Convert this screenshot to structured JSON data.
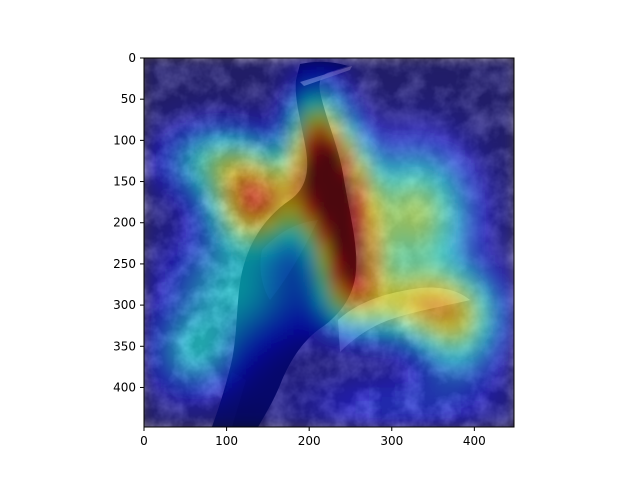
{
  "chart_data": {
    "type": "heatmap",
    "title": "",
    "xlabel": "",
    "ylabel": "",
    "xlim": [
      0,
      448
    ],
    "ylim": [
      448,
      0
    ],
    "x_ticks": [
      0,
      100,
      200,
      300,
      400
    ],
    "y_ticks": [
      0,
      50,
      100,
      150,
      200,
      250,
      300,
      350,
      400
    ],
    "x_tick_labels": [
      "0",
      "100",
      "200",
      "300",
      "400"
    ],
    "y_tick_labels": [
      "0",
      "50",
      "100",
      "150",
      "200",
      "250",
      "300",
      "350",
      "400"
    ],
    "colormap": "jet",
    "grid": false,
    "legend": "none",
    "background_subject": "cormorant-on-rocks",
    "heat_peaks": [
      {
        "x": 230,
        "y": 165,
        "sigma_x": 30,
        "sigma_y": 45,
        "intensity": 1.0
      },
      {
        "x": 135,
        "y": 175,
        "sigma_x": 35,
        "sigma_y": 35,
        "intensity": 0.75
      },
      {
        "x": 250,
        "y": 250,
        "sigma_x": 25,
        "sigma_y": 40,
        "intensity": 0.8
      },
      {
        "x": 330,
        "y": 190,
        "sigma_x": 45,
        "sigma_y": 55,
        "intensity": 0.55
      },
      {
        "x": 210,
        "y": 100,
        "sigma_x": 25,
        "sigma_y": 45,
        "intensity": 0.6
      },
      {
        "x": 320,
        "y": 300,
        "sigma_x": 60,
        "sigma_y": 30,
        "intensity": 0.5
      },
      {
        "x": 110,
        "y": 280,
        "sigma_x": 55,
        "sigma_y": 50,
        "intensity": 0.35
      },
      {
        "x": 90,
        "y": 125,
        "sigma_x": 45,
        "sigma_y": 30,
        "intensity": 0.4
      },
      {
        "x": 380,
        "y": 330,
        "sigma_x": 35,
        "sigma_y": 45,
        "intensity": 0.4
      },
      {
        "x": 60,
        "y": 360,
        "sigma_x": 35,
        "sigma_y": 35,
        "intensity": 0.3
      },
      {
        "x": 300,
        "y": 420,
        "sigma_x": 80,
        "sigma_y": 25,
        "intensity": 0.15
      }
    ],
    "colors": {
      "axis": "#000000",
      "rock_dark": "#2f2a2e",
      "rock_mid": "#6b6269",
      "rock_light": "#a89ea3",
      "bird": "#0e1420",
      "overlay_base": "#00007f"
    }
  }
}
